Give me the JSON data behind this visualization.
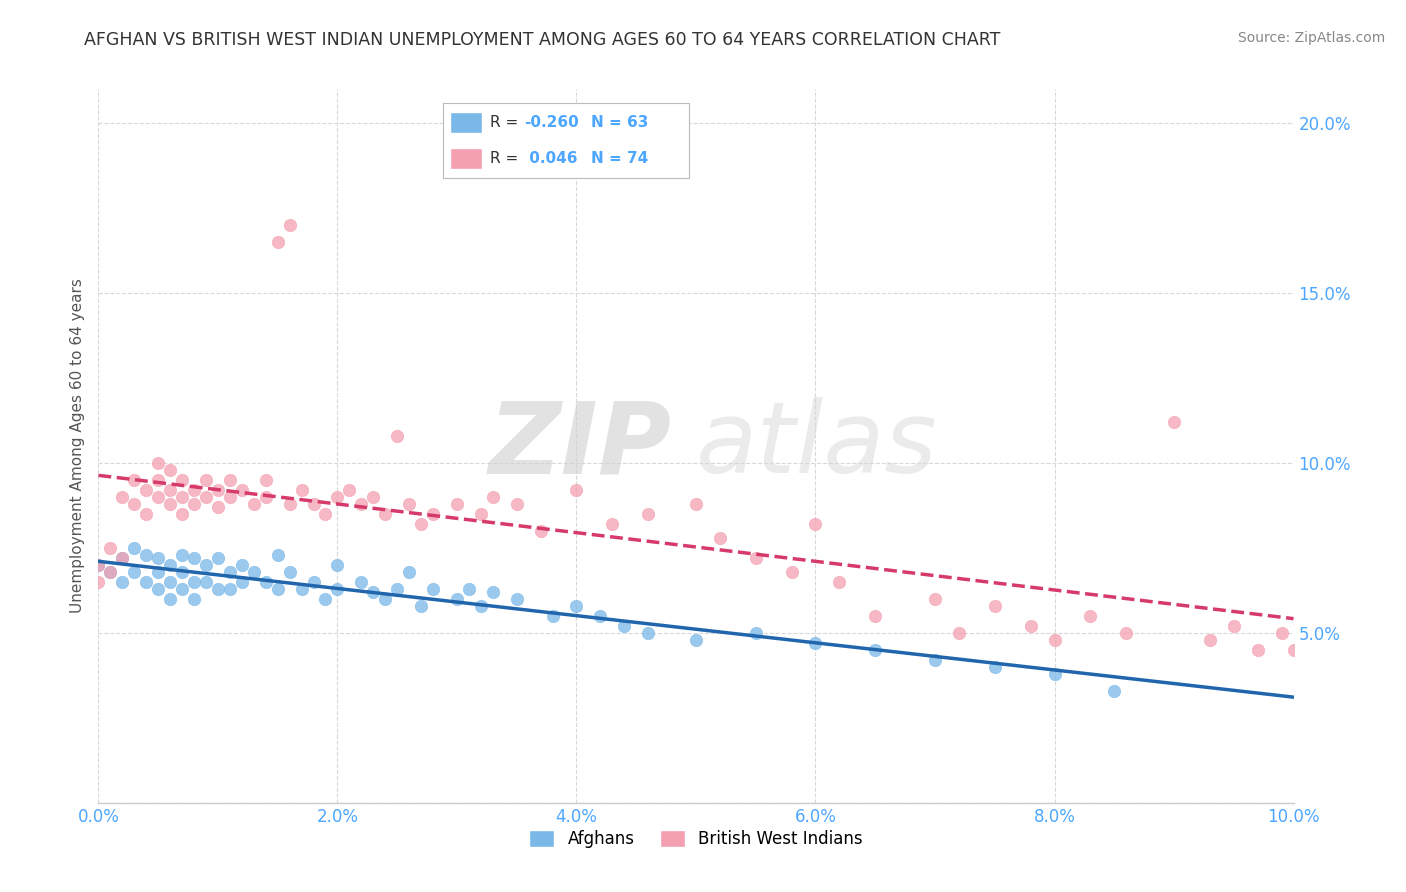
{
  "title": "AFGHAN VS BRITISH WEST INDIAN UNEMPLOYMENT AMONG AGES 60 TO 64 YEARS CORRELATION CHART",
  "source": "Source: ZipAtlas.com",
  "ylabel": "Unemployment Among Ages 60 to 64 years",
  "xlabel": "",
  "watermark_zip": "ZIP",
  "watermark_atlas": "atlas",
  "legend_afghan": "Afghans",
  "legend_bwi": "British West Indians",
  "afghan_R": -0.26,
  "afghan_N": 63,
  "bwi_R": 0.046,
  "bwi_N": 74,
  "afghan_color": "#7ab8e8",
  "bwi_color": "#f4a0b0",
  "afghan_line_color": "#2166ac",
  "bwi_line_color": "#d63a6a",
  "xlim": [
    0.0,
    0.1
  ],
  "ylim": [
    0.0,
    0.21
  ],
  "xticks": [
    0.0,
    0.02,
    0.04,
    0.06,
    0.08,
    0.1
  ],
  "yticks": [
    0.0,
    0.05,
    0.1,
    0.15,
    0.2
  ],
  "xtick_labels": [
    "0.0%",
    "2.0%",
    "4.0%",
    "6.0%",
    "8.0%",
    "10.0%"
  ],
  "ytick_labels": [
    "",
    "5.0%",
    "10.0%",
    "15.0%",
    "20.0%"
  ],
  "afghan_x": [
    0.0,
    0.001,
    0.002,
    0.002,
    0.003,
    0.003,
    0.004,
    0.004,
    0.005,
    0.005,
    0.005,
    0.006,
    0.006,
    0.006,
    0.007,
    0.007,
    0.007,
    0.008,
    0.008,
    0.008,
    0.009,
    0.009,
    0.01,
    0.01,
    0.011,
    0.011,
    0.012,
    0.012,
    0.013,
    0.014,
    0.015,
    0.015,
    0.016,
    0.017,
    0.018,
    0.019,
    0.02,
    0.02,
    0.022,
    0.023,
    0.024,
    0.025,
    0.026,
    0.027,
    0.028,
    0.03,
    0.031,
    0.032,
    0.033,
    0.035,
    0.038,
    0.04,
    0.042,
    0.044,
    0.046,
    0.05,
    0.055,
    0.06,
    0.065,
    0.07,
    0.075,
    0.08,
    0.085
  ],
  "afghan_y": [
    0.07,
    0.068,
    0.072,
    0.065,
    0.075,
    0.068,
    0.073,
    0.065,
    0.072,
    0.068,
    0.063,
    0.07,
    0.065,
    0.06,
    0.073,
    0.068,
    0.063,
    0.072,
    0.065,
    0.06,
    0.07,
    0.065,
    0.072,
    0.063,
    0.068,
    0.063,
    0.07,
    0.065,
    0.068,
    0.065,
    0.063,
    0.073,
    0.068,
    0.063,
    0.065,
    0.06,
    0.063,
    0.07,
    0.065,
    0.062,
    0.06,
    0.063,
    0.068,
    0.058,
    0.063,
    0.06,
    0.063,
    0.058,
    0.062,
    0.06,
    0.055,
    0.058,
    0.055,
    0.052,
    0.05,
    0.048,
    0.05,
    0.047,
    0.045,
    0.042,
    0.04,
    0.038,
    0.033
  ],
  "bwi_x": [
    0.0,
    0.0,
    0.001,
    0.001,
    0.002,
    0.002,
    0.003,
    0.003,
    0.004,
    0.004,
    0.005,
    0.005,
    0.005,
    0.006,
    0.006,
    0.006,
    0.007,
    0.007,
    0.007,
    0.008,
    0.008,
    0.009,
    0.009,
    0.01,
    0.01,
    0.011,
    0.011,
    0.012,
    0.013,
    0.014,
    0.014,
    0.015,
    0.016,
    0.016,
    0.017,
    0.018,
    0.019,
    0.02,
    0.021,
    0.022,
    0.023,
    0.024,
    0.025,
    0.026,
    0.027,
    0.028,
    0.03,
    0.032,
    0.033,
    0.035,
    0.037,
    0.04,
    0.043,
    0.046,
    0.05,
    0.052,
    0.055,
    0.058,
    0.06,
    0.062,
    0.065,
    0.07,
    0.072,
    0.075,
    0.078,
    0.08,
    0.083,
    0.086,
    0.09,
    0.093,
    0.095,
    0.097,
    0.099,
    0.1
  ],
  "bwi_y": [
    0.065,
    0.07,
    0.068,
    0.075,
    0.072,
    0.09,
    0.088,
    0.095,
    0.092,
    0.085,
    0.09,
    0.095,
    0.1,
    0.088,
    0.092,
    0.098,
    0.085,
    0.09,
    0.095,
    0.092,
    0.088,
    0.09,
    0.095,
    0.092,
    0.087,
    0.09,
    0.095,
    0.092,
    0.088,
    0.09,
    0.095,
    0.165,
    0.17,
    0.088,
    0.092,
    0.088,
    0.085,
    0.09,
    0.092,
    0.088,
    0.09,
    0.085,
    0.108,
    0.088,
    0.082,
    0.085,
    0.088,
    0.085,
    0.09,
    0.088,
    0.08,
    0.092,
    0.082,
    0.085,
    0.088,
    0.078,
    0.072,
    0.068,
    0.082,
    0.065,
    0.055,
    0.06,
    0.05,
    0.058,
    0.052,
    0.048,
    0.055,
    0.05,
    0.112,
    0.048,
    0.052,
    0.045,
    0.05,
    0.045
  ]
}
